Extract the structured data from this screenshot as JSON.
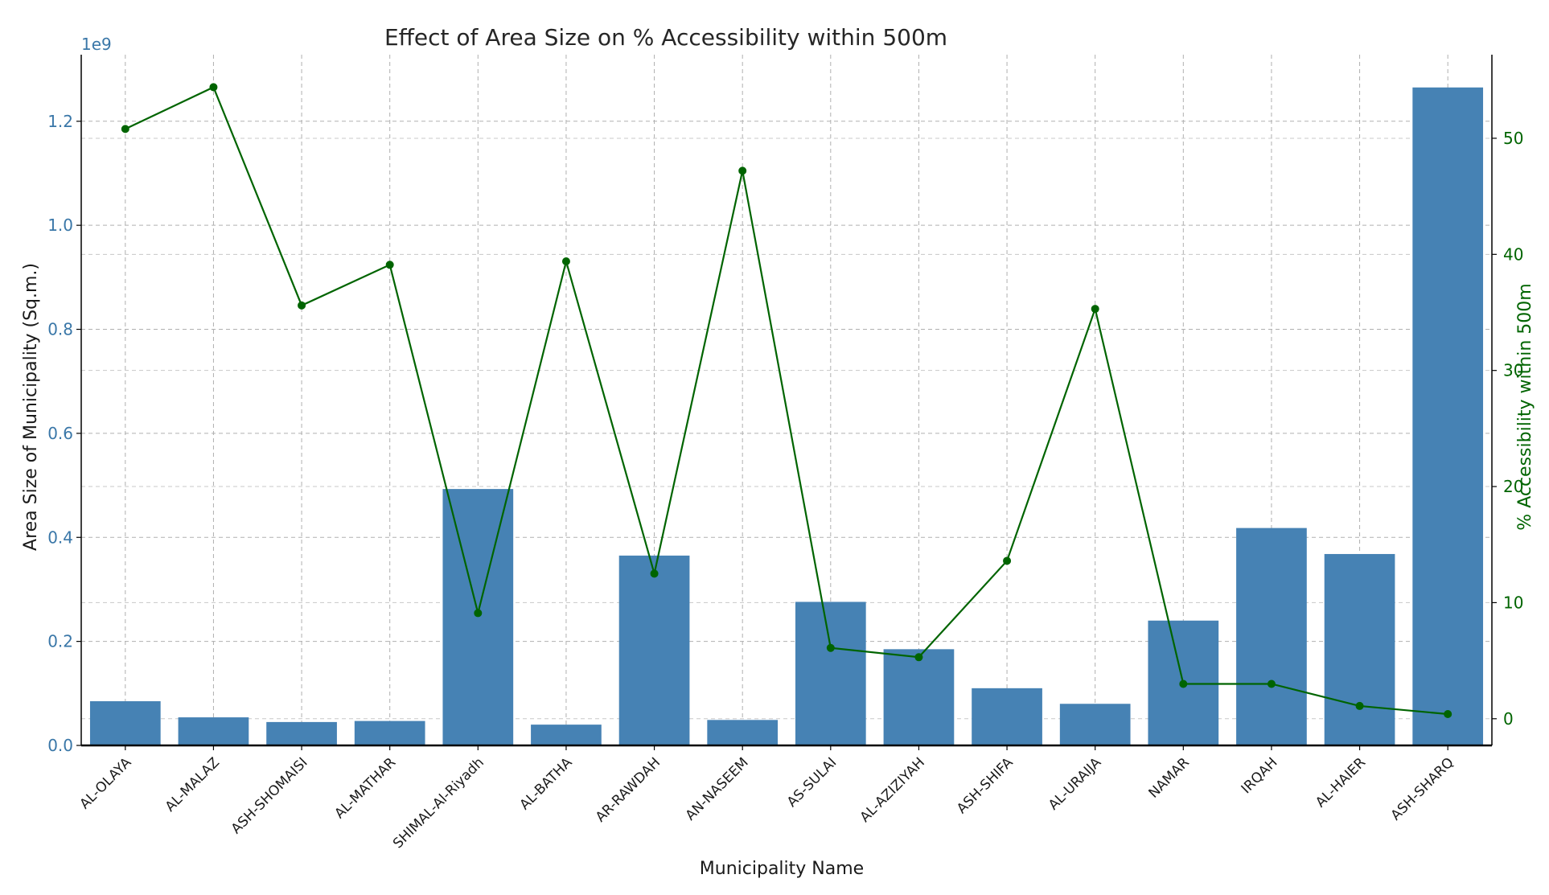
{
  "chart_data": {
    "type": "bar+line",
    "title": "Effect of Area Size on % Accessibility within 500m",
    "xlabel": "Municipality Name",
    "ylabel_left": "Area Size of Municipality (Sq.m.)",
    "ylabel_right": "% Accessibility within 500m",
    "left_axis_offset_label": "1e9",
    "categories": [
      "AL-OLAYA",
      "AL-MALAZ",
      "ASH-SHOMAISI",
      "AL-MATHAR",
      "SHIMAL-Al-Riyadh",
      "AL-BATHA",
      "AR-RAWDAH",
      "AN-NASEEM",
      "AS-SULAI",
      "AL-AZIZIYAH",
      "ASH-SHIFA",
      "AL-URAIJA",
      "NAMAR",
      "IRQAH",
      "AL-HAIER",
      "ASH-SHARQ"
    ],
    "series": [
      {
        "name": "Area Size of Municipality (Sq.m.)",
        "type": "bar",
        "axis": "left",
        "color": "#4682b4",
        "values": [
          0.085,
          0.054,
          0.045,
          0.047,
          0.493,
          0.04,
          0.365,
          0.049,
          0.276,
          0.185,
          0.11,
          0.08,
          0.24,
          0.418,
          0.368,
          1.265
        ]
      },
      {
        "name": "% Accessibility within 500m",
        "type": "line",
        "axis": "right",
        "color": "#006400",
        "values": [
          50.8,
          54.4,
          35.6,
          39.1,
          9.1,
          39.4,
          12.5,
          47.2,
          6.1,
          5.3,
          13.6,
          35.3,
          3.0,
          3.0,
          1.1,
          0.4
        ]
      }
    ],
    "ylim_left": [
      0,
      1.328
    ],
    "yticks_left": [
      "0.0",
      "0.2",
      "0.4",
      "0.6",
      "0.8",
      "1.0",
      "1.2"
    ],
    "ylim_right": [
      -2.3,
      57.2
    ],
    "yticks_right": [
      "0",
      "10",
      "20",
      "30",
      "40",
      "50"
    ],
    "grid": true,
    "left_axis_color": "#3a77a8",
    "right_axis_color": "#006400"
  }
}
